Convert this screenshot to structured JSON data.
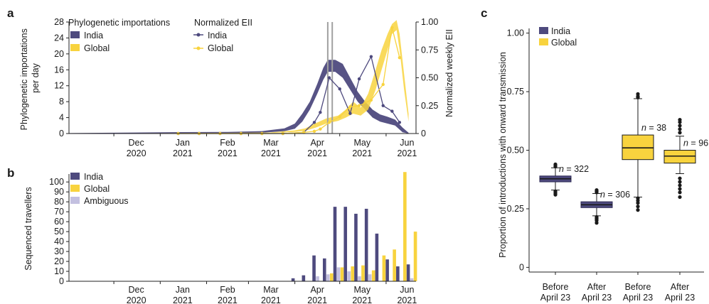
{
  "panel_labels": {
    "a": "a",
    "b": "b",
    "c": "c"
  },
  "colors": {
    "india": "#4e4a7e",
    "india_dark": "#2d2a55",
    "global": "#f8d33e",
    "global_dark": "#e8b400",
    "ambiguous": "#c3c0e0",
    "grey_line": "#a0a0a0"
  },
  "chart_data": [
    {
      "type": "area",
      "panel": "a",
      "xlabel": "",
      "ylabel": "Phylogenetic importations per day",
      "ylabel_lines": [
        "Phylogenetic importations",
        "per day"
      ],
      "ylabel_right": "Normalized weekly EII",
      "x_ticks": [
        [
          "Dec",
          "2020"
        ],
        [
          "Jan",
          "2021"
        ],
        [
          "Feb",
          "2021"
        ],
        [
          "Mar",
          "2021"
        ],
        [
          "Apr",
          "2021"
        ],
        [
          "May",
          "2021"
        ],
        [
          "Jun",
          "2021"
        ]
      ],
      "x_range": [
        "2020-11-01",
        "2021-06-21"
      ],
      "y_ticks": [
        "0",
        "4",
        "8",
        "12",
        "16",
        "20",
        "24",
        "28"
      ],
      "ylim": [
        0,
        28
      ],
      "y2_ticks": [
        "0",
        "0.25",
        "0.50",
        "0.75",
        "1.00"
      ],
      "y2lim": [
        0,
        1
      ],
      "legend_title_importations": "Phylogenetic importations",
      "legend_title_eii": "Normalized EII",
      "legend_items": [
        "India",
        "Global"
      ],
      "vertical_lines": [
        "2021-04-23",
        "2021-04-26"
      ],
      "bands": [
        {
          "name": "India",
          "points": [
            [
              "2020-11-01",
              0,
              0.1
            ],
            [
              "2020-12-15",
              0.05,
              0.25
            ],
            [
              "2021-01-15",
              0.1,
              0.35
            ],
            [
              "2021-02-15",
              0.15,
              0.4
            ],
            [
              "2021-03-10",
              0.2,
              0.6
            ],
            [
              "2021-03-25",
              0.6,
              1.3
            ],
            [
              "2021-04-01",
              1.2,
              2.5
            ],
            [
              "2021-04-06",
              3,
              5
            ],
            [
              "2021-04-11",
              6,
              8
            ],
            [
              "2021-04-16",
              10,
              12.5
            ],
            [
              "2021-04-20",
              13.5,
              16.5
            ],
            [
              "2021-04-23",
              15.5,
              18.5
            ],
            [
              "2021-04-28",
              15.5,
              18.5
            ],
            [
              "2021-05-03",
              14,
              17.5
            ],
            [
              "2021-05-08",
              11,
              14
            ],
            [
              "2021-05-13",
              8,
              10.5
            ],
            [
              "2021-05-18",
              6,
              8
            ],
            [
              "2021-05-23",
              4,
              6
            ],
            [
              "2021-05-28",
              3,
              4.8
            ],
            [
              "2021-06-02",
              2.5,
              4.2
            ],
            [
              "2021-06-07",
              2,
              3.5
            ],
            [
              "2021-06-12",
              0.3,
              1.5
            ],
            [
              "2021-06-16",
              0,
              0.2
            ]
          ]
        },
        {
          "name": "Global",
          "points": [
            [
              "2020-11-01",
              0,
              0.05
            ],
            [
              "2021-01-15",
              0,
              0.1
            ],
            [
              "2021-03-15",
              0.1,
              0.25
            ],
            [
              "2021-04-01",
              0.4,
              0.8
            ],
            [
              "2021-04-08",
              0.7,
              1.3
            ],
            [
              "2021-04-15",
              1.5,
              2.6
            ],
            [
              "2021-04-22",
              2.5,
              3.8
            ],
            [
              "2021-04-30",
              3.2,
              4.5
            ],
            [
              "2021-05-05",
              4,
              6
            ],
            [
              "2021-05-10",
              5,
              8
            ],
            [
              "2021-05-15",
              4.5,
              6.5
            ],
            [
              "2021-05-20",
              6,
              10
            ],
            [
              "2021-05-25",
              11,
              16
            ],
            [
              "2021-05-29",
              16,
              21
            ],
            [
              "2021-06-02",
              21,
              25
            ],
            [
              "2021-06-05",
              25,
              27.5
            ],
            [
              "2021-06-08",
              26,
              28.5
            ],
            [
              "2021-06-10",
              21,
              25
            ],
            [
              "2021-06-13",
              11,
              15
            ],
            [
              "2021-06-16",
              3,
              5
            ]
          ]
        }
      ],
      "eii_series": [
        {
          "name": "India",
          "points": [
            [
              "2021-01-13",
              0
            ],
            [
              "2021-01-27",
              0
            ],
            [
              "2021-02-10",
              0
            ],
            [
              "2021-02-24",
              0
            ],
            [
              "2021-03-10",
              0
            ],
            [
              "2021-03-24",
              0
            ],
            [
              "2021-04-07",
              0.01
            ],
            [
              "2021-04-14",
              0.1
            ],
            [
              "2021-04-18",
              0.19
            ],
            [
              "2021-04-24",
              0.5
            ],
            [
              "2021-05-01",
              0.4
            ],
            [
              "2021-05-08",
              0.18
            ],
            [
              "2021-05-14",
              0.49
            ],
            [
              "2021-05-22",
              0.69
            ],
            [
              "2021-05-30",
              0.25
            ],
            [
              "2021-06-05",
              0.2
            ],
            [
              "2021-06-10",
              0.1
            ]
          ]
        },
        {
          "name": "Global",
          "points": [
            [
              "2021-01-13",
              0
            ],
            [
              "2021-01-27",
              0
            ],
            [
              "2021-02-10",
              0
            ],
            [
              "2021-02-24",
              0
            ],
            [
              "2021-03-10",
              0
            ],
            [
              "2021-03-24",
              0
            ],
            [
              "2021-04-07",
              0.01
            ],
            [
              "2021-04-14",
              0.02
            ],
            [
              "2021-04-18",
              0.04
            ],
            [
              "2021-04-24",
              0.1
            ],
            [
              "2021-05-01",
              0.15
            ],
            [
              "2021-05-08",
              0.24
            ],
            [
              "2021-05-14",
              0.25
            ],
            [
              "2021-05-22",
              0.3
            ],
            [
              "2021-05-30",
              0.44
            ],
            [
              "2021-06-05",
              0.95
            ],
            [
              "2021-06-10",
              0.68
            ]
          ]
        }
      ]
    },
    {
      "type": "bar",
      "panel": "b",
      "xlabel": "",
      "ylabel": "Sequenced travellers",
      "x_ticks": [
        [
          "Dec",
          "2020"
        ],
        [
          "Jan",
          "2021"
        ],
        [
          "Feb",
          "2021"
        ],
        [
          "Mar",
          "2021"
        ],
        [
          "Apr",
          "2021"
        ],
        [
          "May",
          "2021"
        ],
        [
          "Jun",
          "2021"
        ]
      ],
      "y_ticks": [
        "0",
        "10",
        "20",
        "30",
        "40",
        "50",
        "60",
        "70",
        "80",
        "90",
        "100"
      ],
      "ylim": [
        0,
        108
      ],
      "legend_items": [
        "India",
        "Global",
        "Ambiguous"
      ],
      "weeks": [
        "2021-03-29",
        "2021-04-05",
        "2021-04-12",
        "2021-04-19",
        "2021-04-26",
        "2021-05-03",
        "2021-05-10",
        "2021-05-17",
        "2021-05-24",
        "2021-05-31",
        "2021-06-07",
        "2021-06-14"
      ],
      "series": [
        {
          "name": "India",
          "values": [
            3,
            6,
            26,
            23,
            75,
            75,
            68,
            73,
            48,
            22,
            15,
            17
          ]
        },
        {
          "name": "Global",
          "values": [
            0,
            0,
            0,
            8,
            14,
            15,
            16,
            11,
            26,
            32,
            110,
            50
          ]
        },
        {
          "name": "Ambiguous",
          "values": [
            0,
            0,
            5,
            7,
            14,
            10,
            5,
            7,
            0,
            0,
            0,
            3
          ]
        }
      ]
    },
    {
      "type": "box",
      "panel": "c",
      "xlabel": "",
      "ylabel": "Proportion of introductions with onward transmission",
      "categories": [
        [
          "Before",
          "April 23"
        ],
        [
          "After",
          "April 23"
        ],
        [
          "Before",
          "April 23"
        ],
        [
          "After",
          "April 23"
        ]
      ],
      "y_ticks": [
        "0",
        "0.25",
        "0.50",
        "0.75",
        "1.00"
      ],
      "ylim": [
        -0.02,
        1.02
      ],
      "legend_items": [
        "India",
        "Global"
      ],
      "n_prefix": "n",
      "boxes": [
        {
          "name": "India",
          "q1": 0.365,
          "median": 0.378,
          "q3": 0.39,
          "whisker_low": 0.33,
          "whisker_high": 0.425,
          "outliers_low": [
            0.31,
            0.315,
            0.32,
            0.325
          ],
          "outliers_high": [
            0.43,
            0.435,
            0.44
          ],
          "n": "322"
        },
        {
          "name": "India",
          "q1": 0.255,
          "median": 0.267,
          "q3": 0.28,
          "whisker_low": 0.22,
          "whisker_high": 0.315,
          "outliers_low": [
            0.19,
            0.2,
            0.205,
            0.21,
            0.215
          ],
          "outliers_high": [
            0.32,
            0.325,
            0.33
          ],
          "n": "306"
        },
        {
          "name": "Global",
          "q1": 0.46,
          "median": 0.51,
          "q3": 0.565,
          "whisker_low": 0.3,
          "whisker_high": 0.72,
          "outliers_low": [
            0.245,
            0.26,
            0.275,
            0.285,
            0.295
          ],
          "outliers_high": [
            0.725,
            0.73,
            0.74
          ],
          "n": "38"
        },
        {
          "name": "Global",
          "q1": 0.445,
          "median": 0.475,
          "q3": 0.5,
          "whisker_low": 0.4,
          "whisker_high": 0.56,
          "outliers_low": [
            0.3,
            0.32,
            0.335,
            0.35,
            0.365,
            0.38
          ],
          "outliers_high": [
            0.575,
            0.59,
            0.605,
            0.62,
            0.63
          ],
          "n": "96"
        }
      ]
    }
  ]
}
